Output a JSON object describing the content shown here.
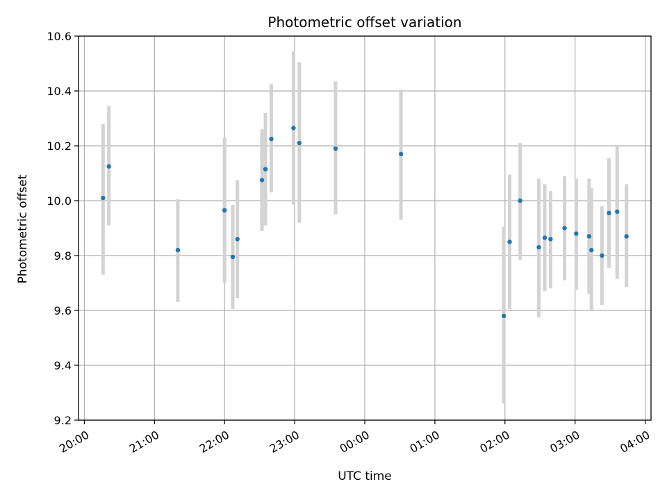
{
  "chart_data": {
    "type": "scatter",
    "title": "Photometric offset variation",
    "xlabel": "UTC time",
    "ylabel": "Photometric offset",
    "x_unit": "UTC time of night (20:00 to 04:00)",
    "xlim": [
      "19:55",
      "04:05"
    ],
    "ylim": [
      9.2,
      10.6
    ],
    "x_ticks": [
      "20:00",
      "21:00",
      "22:00",
      "23:00",
      "00:00",
      "01:00",
      "02:00",
      "03:00",
      "04:00"
    ],
    "y_ticks": [
      "9.2",
      "9.4",
      "9.6",
      "9.8",
      "10.0",
      "10.2",
      "10.4",
      "10.6"
    ],
    "grid": true,
    "point_color": "#1f77b4",
    "errorbar_color": "#d3d3d3",
    "series": [
      {
        "points": [
          {
            "x": "20:16",
            "y": 10.01,
            "ylow": 9.73,
            "yhigh": 10.28
          },
          {
            "x": "20:21",
            "y": 10.125,
            "ylow": 9.91,
            "yhigh": 10.345
          },
          {
            "x": "21:20",
            "y": 9.82,
            "ylow": 9.63,
            "yhigh": 10.005
          },
          {
            "x": "22:00",
            "y": 9.965,
            "ylow": 9.7,
            "yhigh": 10.23
          },
          {
            "x": "22:07",
            "y": 9.795,
            "ylow": 9.605,
            "yhigh": 9.985
          },
          {
            "x": "22:11",
            "y": 9.86,
            "ylow": 9.645,
            "yhigh": 10.075
          },
          {
            "x": "22:32",
            "y": 10.075,
            "ylow": 9.89,
            "yhigh": 10.26
          },
          {
            "x": "22:35",
            "y": 10.115,
            "ylow": 9.91,
            "yhigh": 10.32
          },
          {
            "x": "22:40",
            "y": 10.225,
            "ylow": 10.03,
            "yhigh": 10.425
          },
          {
            "x": "22:59",
            "y": 10.265,
            "ylow": 9.985,
            "yhigh": 10.545
          },
          {
            "x": "23:04",
            "y": 10.21,
            "ylow": 9.92,
            "yhigh": 10.505
          },
          {
            "x": "23:35",
            "y": 10.19,
            "ylow": 9.95,
            "yhigh": 10.435
          },
          {
            "x": "00:31",
            "y": 10.17,
            "ylow": 9.93,
            "yhigh": 10.405
          },
          {
            "x": "01:59",
            "y": 9.58,
            "ylow": 9.26,
            "yhigh": 9.905
          },
          {
            "x": "02:04",
            "y": 9.85,
            "ylow": 9.605,
            "yhigh": 10.095
          },
          {
            "x": "02:13",
            "y": 10.0,
            "ylow": 9.785,
            "yhigh": 10.21
          },
          {
            "x": "02:29",
            "y": 9.83,
            "ylow": 9.575,
            "yhigh": 10.08
          },
          {
            "x": "02:34",
            "y": 9.865,
            "ylow": 9.67,
            "yhigh": 10.06
          },
          {
            "x": "02:39",
            "y": 9.86,
            "ylow": 9.68,
            "yhigh": 10.035
          },
          {
            "x": "02:51",
            "y": 9.9,
            "ylow": 9.71,
            "yhigh": 10.09
          },
          {
            "x": "03:01",
            "y": 9.88,
            "ylow": 9.675,
            "yhigh": 10.08
          },
          {
            "x": "03:12",
            "y": 9.87,
            "ylow": 9.66,
            "yhigh": 10.08
          },
          {
            "x": "03:14",
            "y": 9.82,
            "ylow": 9.6,
            "yhigh": 10.045
          },
          {
            "x": "03:23",
            "y": 9.8,
            "ylow": 9.62,
            "yhigh": 9.98
          },
          {
            "x": "03:29",
            "y": 9.955,
            "ylow": 9.755,
            "yhigh": 10.155
          },
          {
            "x": "03:36",
            "y": 9.96,
            "ylow": 9.715,
            "yhigh": 10.2
          },
          {
            "x": "03:44",
            "y": 9.87,
            "ylow": 9.685,
            "yhigh": 10.06
          }
        ]
      }
    ]
  }
}
